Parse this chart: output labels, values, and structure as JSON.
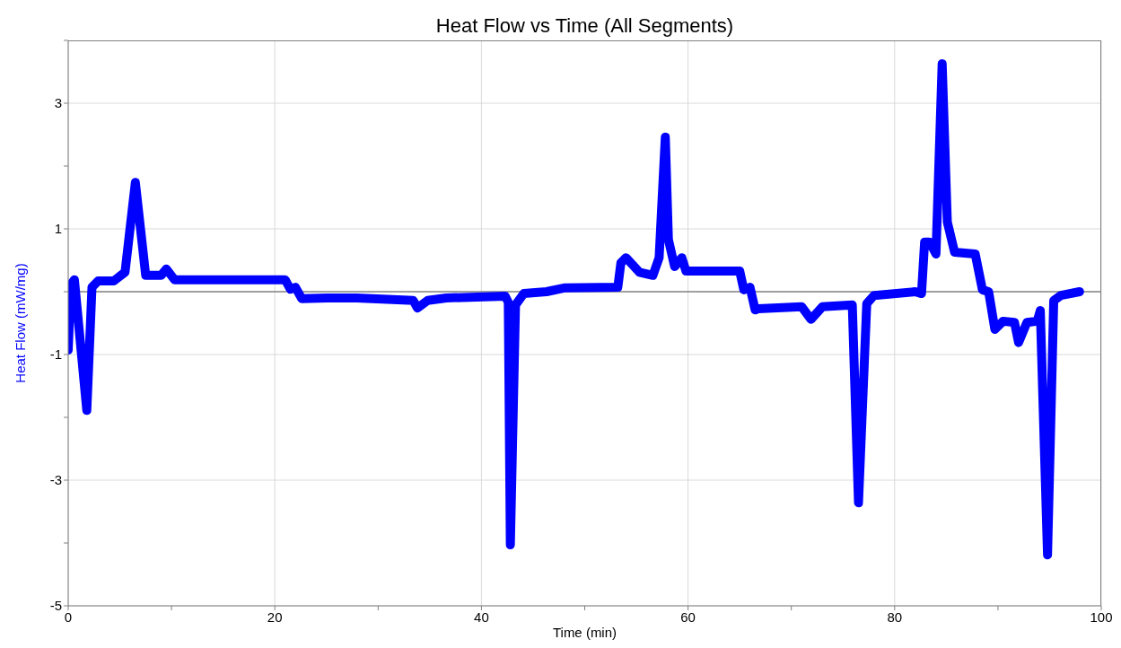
{
  "chart_data": {
    "type": "line",
    "title": "Heat Flow vs Time (All Segments)",
    "xlabel": "Time (min)",
    "ylabel": "Heat Flow (mW/mg)",
    "x": [
      0,
      0.26,
      0.6,
      1.8,
      2.3,
      2.9,
      4.4,
      5.5,
      6.5,
      7.5,
      9.0,
      9.5,
      10.3,
      21.0,
      21.5,
      22.0,
      22.6,
      25.1,
      27.9,
      33.4,
      33.8,
      34.8,
      36.6,
      42.3,
      42.6,
      42.8,
      43.3,
      44.1,
      46.3,
      48.0,
      53.2,
      53.5,
      54.0,
      55.3,
      56.6,
      57.2,
      57.8,
      58.1,
      58.7,
      59.4,
      59.8,
      65.0,
      65.4,
      66.0,
      66.5,
      66.8,
      71.0,
      71.9,
      73.0,
      75.9,
      76.5,
      77.3,
      78.0,
      82.0,
      82.6,
      82.9,
      83.4,
      84.0,
      84.6,
      85.1,
      85.8,
      87.8,
      88.5,
      89.1,
      89.7,
      90.5,
      91.6,
      92.0,
      92.8,
      93.8,
      94.1,
      94.8,
      95.4,
      96.1,
      97.9
    ],
    "series": [
      {
        "color": "#0000ff",
        "values": [
          -0.93,
          0.11,
          0.19,
          -1.89,
          0.07,
          0.17,
          0.17,
          0.31,
          1.74,
          0.26,
          0.26,
          0.36,
          0.19,
          0.19,
          0.04,
          0.07,
          -0.11,
          -0.1,
          -0.1,
          -0.14,
          -0.26,
          -0.14,
          -0.1,
          -0.07,
          -0.17,
          -4.03,
          -0.21,
          -0.03,
          0.0,
          0.06,
          0.07,
          0.46,
          0.54,
          0.31,
          0.26,
          0.54,
          2.46,
          0.83,
          0.4,
          0.54,
          0.33,
          0.33,
          0.03,
          0.07,
          -0.29,
          -0.27,
          -0.24,
          -0.44,
          -0.24,
          -0.21,
          -3.36,
          -0.19,
          -0.06,
          0.0,
          -0.03,
          0.79,
          0.79,
          0.6,
          3.63,
          1.11,
          0.63,
          0.6,
          0.03,
          0.0,
          -0.6,
          -0.47,
          -0.49,
          -0.81,
          -0.49,
          -0.47,
          -0.3,
          -4.19,
          -0.14,
          -0.06,
          0.0
        ]
      }
    ],
    "xlim": [
      0,
      100
    ],
    "xticks": [
      0,
      {
        "value": 10,
        "label": null
      },
      20,
      {
        "value": 30,
        "label": null
      },
      40,
      {
        "value": 50,
        "label": null
      },
      60,
      {
        "value": 70,
        "label": null
      },
      80,
      {
        "value": 90,
        "label": null
      },
      100
    ],
    "ylim": [
      -5,
      4
    ],
    "yticks": [
      -5,
      {
        "value": -4,
        "label": null
      },
      -3,
      {
        "value": -2,
        "label": null
      },
      -1,
      {
        "value": 0,
        "label": null
      },
      1,
      {
        "value": 2,
        "label": null
      },
      3,
      {
        "value": 4,
        "label": null
      }
    ],
    "ref_lines": [
      {
        "axis": "y",
        "value": 0,
        "color": "#808080"
      }
    ],
    "grid": true
  }
}
